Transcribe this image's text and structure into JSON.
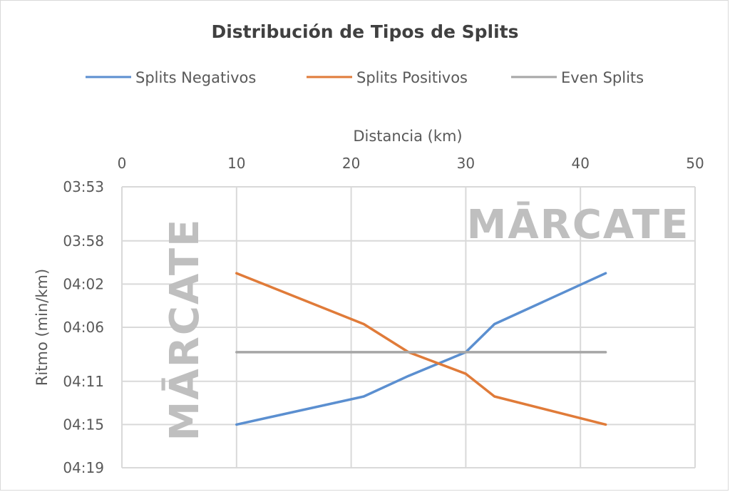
{
  "chart_data": {
    "type": "line",
    "title": "Distribución de Tipos de Splits",
    "xlabel": "Distancia (km)",
    "ylabel": "Ritmo (min/km)",
    "x_ticks": [
      "0",
      "10",
      "20",
      "30",
      "40",
      "50"
    ],
    "xlim": [
      0,
      50
    ],
    "y_ticks": [
      "03:53",
      "03:58",
      "04:02",
      "04:06",
      "04:11",
      "04:15",
      "04:19"
    ],
    "y_tick_seconds": [
      233,
      238,
      242,
      246,
      251,
      255,
      259
    ],
    "ylim_seconds": [
      233,
      259
    ],
    "y_inverted": true,
    "x_axis_position": "top",
    "grid": true,
    "legend_position": "top",
    "series": [
      {
        "name": "Splits Negativos",
        "color": "#5b8fd0",
        "x": [
          10,
          21.1,
          25,
          30,
          32.5,
          42.2
        ],
        "y_seconds": [
          255,
          252.4,
          250.5,
          248.3,
          245.7,
          241
        ],
        "y": [
          "04:15",
          "04:12",
          "04:11",
          "04:08",
          "04:06",
          "04:01"
        ]
      },
      {
        "name": "Splits Positivos",
        "color": "#e07b39",
        "x": [
          10,
          21.1,
          25,
          30,
          32.5,
          42.2
        ],
        "y_seconds": [
          241,
          245.7,
          248.3,
          250.3,
          252.4,
          255
        ],
        "y": [
          "04:01",
          "04:06",
          "04:08",
          "04:10",
          "04:12",
          "04:15"
        ]
      },
      {
        "name": "Even Splits",
        "color": "#a6a6a6",
        "x": [
          10,
          42.2
        ],
        "y_seconds": [
          248.3,
          248.3
        ],
        "y": [
          "04:08",
          "04:08"
        ]
      }
    ]
  },
  "watermark": {
    "text": "MĀRCATE"
  }
}
